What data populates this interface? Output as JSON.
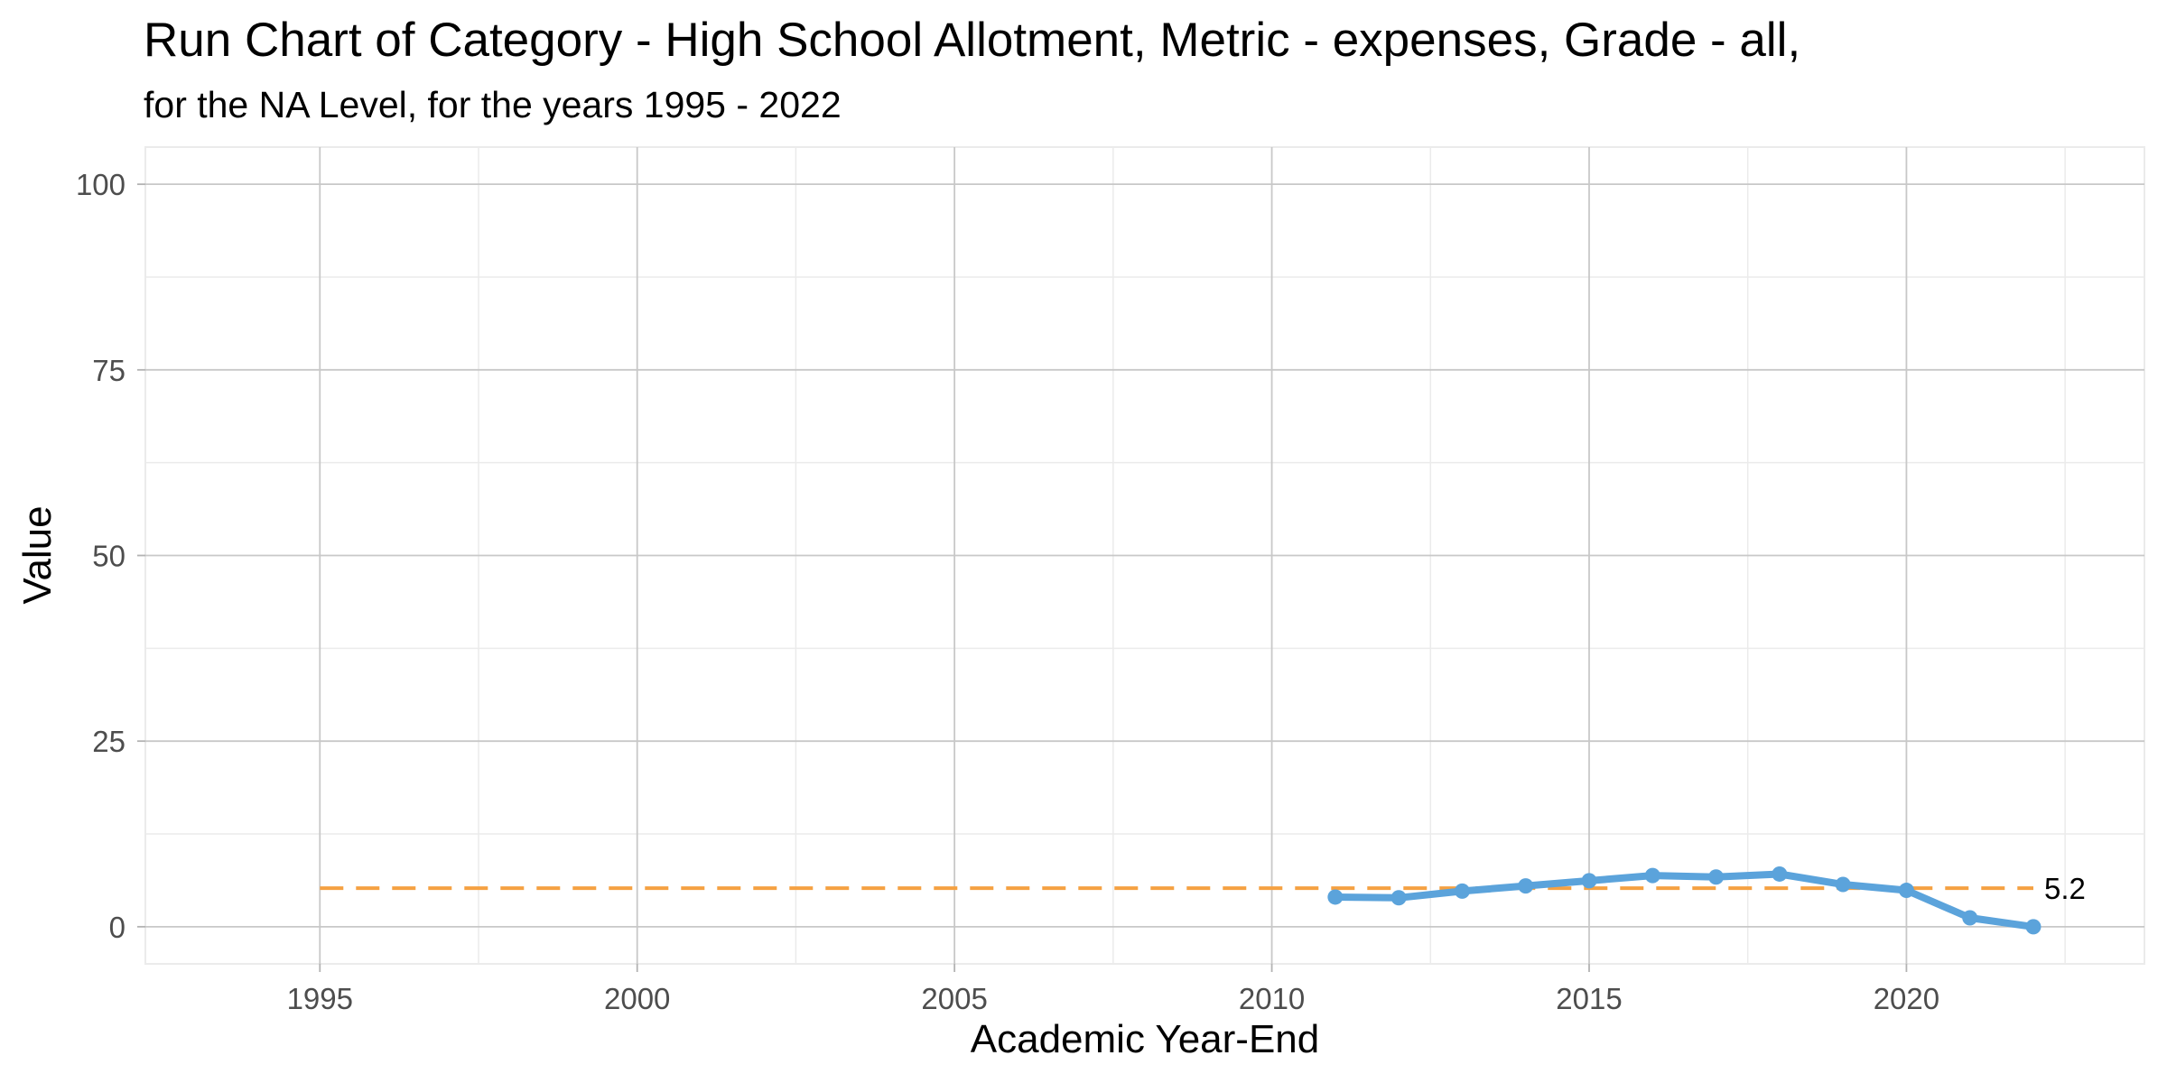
{
  "chart_data": {
    "type": "line",
    "title": "Run Chart of Category -  High School Allotment, Metric - expenses, Grade - all,",
    "subtitle": "for the NA Level, for the years 1995 - 2022",
    "xlabel": "Academic Year-End",
    "ylabel": "Value",
    "xlim": [
      1992.25,
      2023.75
    ],
    "ylim": [
      -5,
      105
    ],
    "x_ticks": [
      1995,
      2000,
      2005,
      2010,
      2015,
      2020
    ],
    "y_ticks": [
      0,
      25,
      50,
      75,
      100
    ],
    "grid": true,
    "series": [
      {
        "color": "#5BA3DB",
        "x": [
          2011,
          2012,
          2013,
          2014,
          2015,
          2016,
          2017,
          2018,
          2019,
          2020,
          2021,
          2022
        ],
        "values": [
          4.0,
          3.9,
          4.8,
          5.5,
          6.2,
          6.9,
          6.7,
          7.1,
          5.7,
          4.9,
          1.2,
          0.0
        ]
      }
    ],
    "reference_line": {
      "value": 5.2,
      "label": "5.2",
      "x_start": 1995,
      "x_end": 2022,
      "style": "dashed",
      "color": "#F5A142"
    }
  }
}
